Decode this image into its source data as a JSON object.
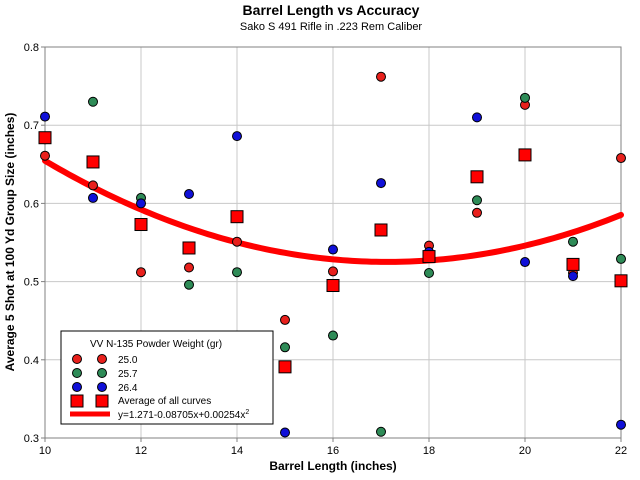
{
  "chart_data": {
    "type": "scatter",
    "title": "Barrel Length vs Accuracy",
    "subtitle": "Sako S 491 Rifle in .223 Rem Caliber",
    "xlabel": "Barrel Length (inches)",
    "ylabel": "Average 5 Shot at 100 Yd Group Size (inches)",
    "xlim": [
      10,
      22
    ],
    "ylim": [
      0.3,
      0.8
    ],
    "xticks": [
      "10",
      "12",
      "14",
      "16",
      "18",
      "20",
      "22"
    ],
    "yticks": [
      "0.3",
      "0.4",
      "0.5",
      "0.6",
      "0.7",
      "0.8"
    ],
    "grid": true,
    "legend_title": "VV N-135 Powder Weight (gr)",
    "legend_position": "bottom-left",
    "series": [
      {
        "name": "25.0",
        "color": "#e8201c",
        "marker": "circle",
        "x": [
          10,
          11,
          12,
          13,
          14,
          15,
          16,
          17,
          18,
          19,
          20,
          21,
          22
        ],
        "y": [
          0.661,
          0.623,
          0.512,
          0.518,
          0.551,
          0.451,
          0.513,
          0.762,
          0.546,
          0.588,
          0.726,
          0.511,
          0.658
        ]
      },
      {
        "name": "25.7",
        "color": "#2e8b57",
        "marker": "circle",
        "x": [
          10,
          11,
          12,
          13,
          14,
          15,
          16,
          17,
          18,
          19,
          20,
          21,
          22
        ],
        "y": [
          0.682,
          0.73,
          0.607,
          0.496,
          0.512,
          0.416,
          0.431,
          0.308,
          0.511,
          0.604,
          0.735,
          0.551,
          0.529
        ]
      },
      {
        "name": "26.4",
        "color": "#1010d8",
        "marker": "circle",
        "x": [
          10,
          11,
          12,
          13,
          14,
          15,
          16,
          17,
          18,
          19,
          20,
          21,
          22
        ],
        "y": [
          0.711,
          0.607,
          0.6,
          0.612,
          0.686,
          0.307,
          0.541,
          0.626,
          0.538,
          0.71,
          0.525,
          0.507,
          0.317
        ]
      },
      {
        "name": "Average of all curves",
        "color": "#ff0000",
        "marker": "square",
        "x": [
          10,
          11,
          12,
          13,
          14,
          15,
          16,
          17,
          18,
          19,
          20,
          21,
          22
        ],
        "y": [
          0.684,
          0.653,
          0.573,
          0.543,
          0.583,
          0.391,
          0.495,
          0.566,
          0.532,
          0.634,
          0.662,
          0.522,
          0.501
        ]
      }
    ],
    "fit": {
      "name": "y=1.271-0.08705x+0.00254x",
      "superscript": "2",
      "color": "#ff0000",
      "a": 1.271,
      "b": -0.08705,
      "c": 0.00254
    }
  }
}
